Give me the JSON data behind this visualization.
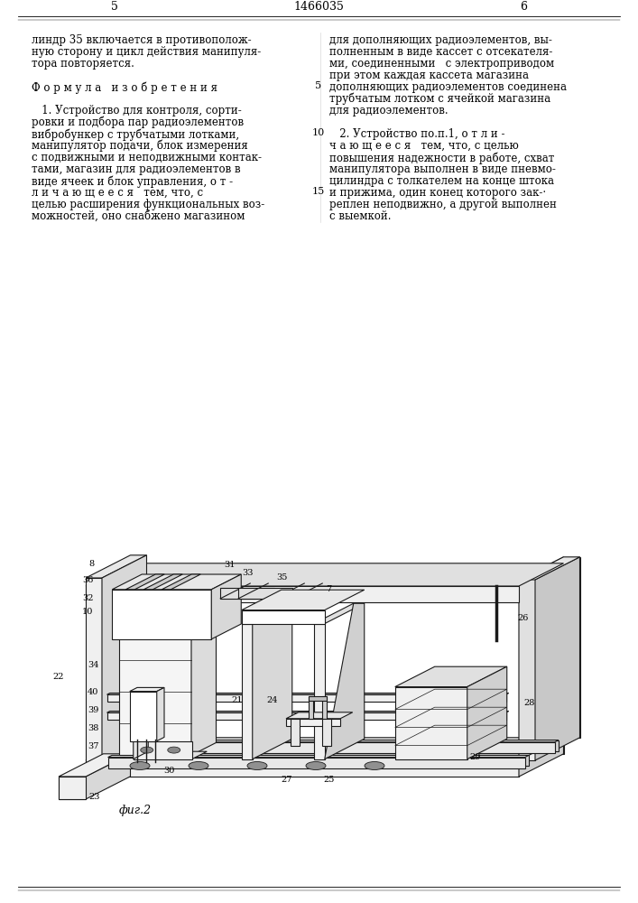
{
  "page_width": 7.07,
  "page_height": 10.0,
  "bg_color": "#ffffff",
  "patent_number": "1466035",
  "page_left_num": "5",
  "page_right_num": "6",
  "text_left_col": [
    "линдр 35 включается в противополож-",
    "ную сторону и цикл действия манипуля-",
    "тора повторяется.",
    "",
    "Ф о р м у л а   и з о б р е т е н и я",
    "",
    "   1. Устройство для контроля, сорти-",
    "ровки и подбора пар радиоэлементов",
    "вибробункер с трубчатыми лотками,",
    "манипулятор подачи, блок измерения",
    "с подвижными и неподвижными контак-",
    "тами, магазин для радиоэлементов в",
    "виде ячеек и блок управления, о т -",
    "л и ч а ю щ е е с я   тем, что, с",
    "целью расширения функциональных воз-",
    "можностей, оно снабжено магазином"
  ],
  "text_right_col": [
    "для дополняющих радиоэлементов, вы-",
    "полненным в виде кассет с отсекателя-",
    "ми, соединенными   с электроприводом",
    "при этом каждая кассета магазина",
    "дополняющих радиоэлементов соединена",
    "трубчатым лотком с ячейкой магазина",
    "для радиоэлементов.",
    "",
    "   2. Устройство по.п.1, о т л и -",
    "ч а ю щ е е с я   тем, что, с целью",
    "повышения надежности в работе, схват",
    "манипулятора выполнен в виде пневмо-",
    "цилиндра с толкателем на конце штока",
    "и прижима, один конец которого зак-·",
    "реплен неподвижно, а другой выполнен",
    "с выемкой."
  ],
  "line_numbers": {
    "5": 4,
    "10": 8,
    "15": 13
  },
  "fig_caption": "фиг.2",
  "ec": "#1a1a1a",
  "fc_white": "#ffffff",
  "fc_light": "#f0f0f0",
  "fc_mid": "#d8d8d8",
  "fc_dark": "#b8b8b8"
}
